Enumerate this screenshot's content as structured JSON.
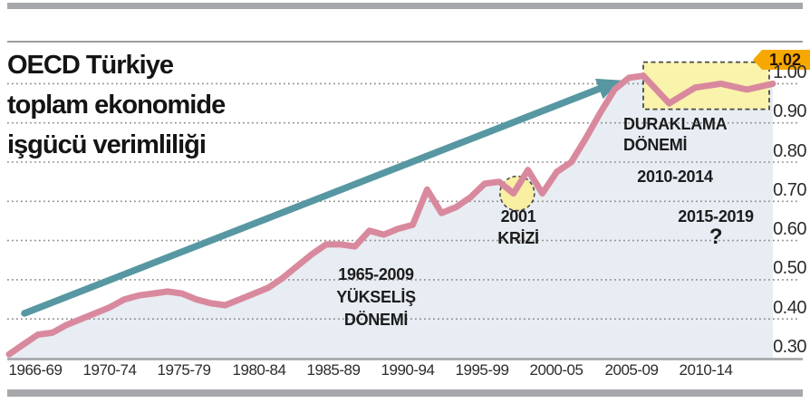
{
  "title": {
    "lines": [
      "OECD Türkiye",
      "toplam ekonomide",
      "işgücü verimliliği"
    ]
  },
  "annotations": {
    "rise": {
      "lines": [
        "1965-2009",
        "YÜKSELİŞ",
        "DÖNEMİ"
      ]
    },
    "crisis": {
      "lines": [
        "2001",
        "KRİZİ"
      ]
    },
    "pause": {
      "lines": [
        "DURAKLAMA",
        "DÖNEMİ"
      ],
      "period": "2010-2014"
    },
    "future": {
      "period": "2015-2019",
      "question_mark": "?"
    },
    "last_value_badge": "1.02"
  },
  "colors": {
    "line": "#D9899E",
    "area_fill": "#E7EDF2",
    "arrow": "#5697A2",
    "highlight_box_fill": "#FAF3AC",
    "highlight_circle_fill": "#F9EFA2",
    "badge_bg": "#F6A800",
    "grid": "#8F8F8F",
    "axis_line": "#9FA1A4",
    "bar": "#A6A8AB"
  },
  "chart_data": {
    "type": "area",
    "title": "OECD Türkiye toplam ekonomide işgücü verimliliği",
    "xlabel": "",
    "ylabel": "",
    "ylim": [
      0.3,
      1.05
    ],
    "grid": "dotted-horizontal",
    "legend_position": "none",
    "x_tick_labels": [
      "1966-69",
      "1970-74",
      "1975-79",
      "1980-84",
      "1985-89",
      "1990-94",
      "1995-99",
      "2000-05",
      "2005-09",
      "2010-14"
    ],
    "y_tick_labels": [
      "1.00",
      "0.90",
      "0.80",
      "0.70",
      "0.60",
      "0.50",
      "0.40",
      "0.30"
    ],
    "last_value": 1.02,
    "series": [
      {
        "name": "işgücü verimliliği",
        "points": [
          [
            1965,
            0.31
          ],
          [
            1966,
            0.335
          ],
          [
            1967,
            0.36
          ],
          [
            1968,
            0.365
          ],
          [
            1969,
            0.385
          ],
          [
            1970,
            0.4
          ],
          [
            1971,
            0.415
          ],
          [
            1972,
            0.43
          ],
          [
            1973,
            0.45
          ],
          [
            1974,
            0.46
          ],
          [
            1975,
            0.465
          ],
          [
            1976,
            0.47
          ],
          [
            1977,
            0.465
          ],
          [
            1978,
            0.45
          ],
          [
            1979,
            0.44
          ],
          [
            1980,
            0.435
          ],
          [
            1981,
            0.45
          ],
          [
            1982,
            0.465
          ],
          [
            1983,
            0.48
          ],
          [
            1984,
            0.505
          ],
          [
            1985,
            0.535
          ],
          [
            1986,
            0.565
          ],
          [
            1987,
            0.59
          ],
          [
            1988,
            0.59
          ],
          [
            1989,
            0.585
          ],
          [
            1990,
            0.625
          ],
          [
            1991,
            0.615
          ],
          [
            1992,
            0.63
          ],
          [
            1993,
            0.64
          ],
          [
            1994,
            0.73
          ],
          [
            1995,
            0.67
          ],
          [
            1996,
            0.685
          ],
          [
            1997,
            0.71
          ],
          [
            1998,
            0.745
          ],
          [
            1999,
            0.75
          ],
          [
            2000,
            0.72
          ],
          [
            2001,
            0.78
          ],
          [
            2002,
            0.72
          ],
          [
            2003,
            0.775
          ],
          [
            2004,
            0.8
          ],
          [
            2005,
            0.86
          ],
          [
            2006,
            0.925
          ],
          [
            2007,
            0.985
          ],
          [
            2008,
            1.015
          ],
          [
            2009,
            1.02
          ],
          [
            2010,
            0.95
          ],
          [
            2011,
            0.99
          ],
          [
            2012,
            1.0
          ],
          [
            2013,
            0.985
          ],
          [
            2014,
            1.0
          ]
        ]
      }
    ]
  }
}
